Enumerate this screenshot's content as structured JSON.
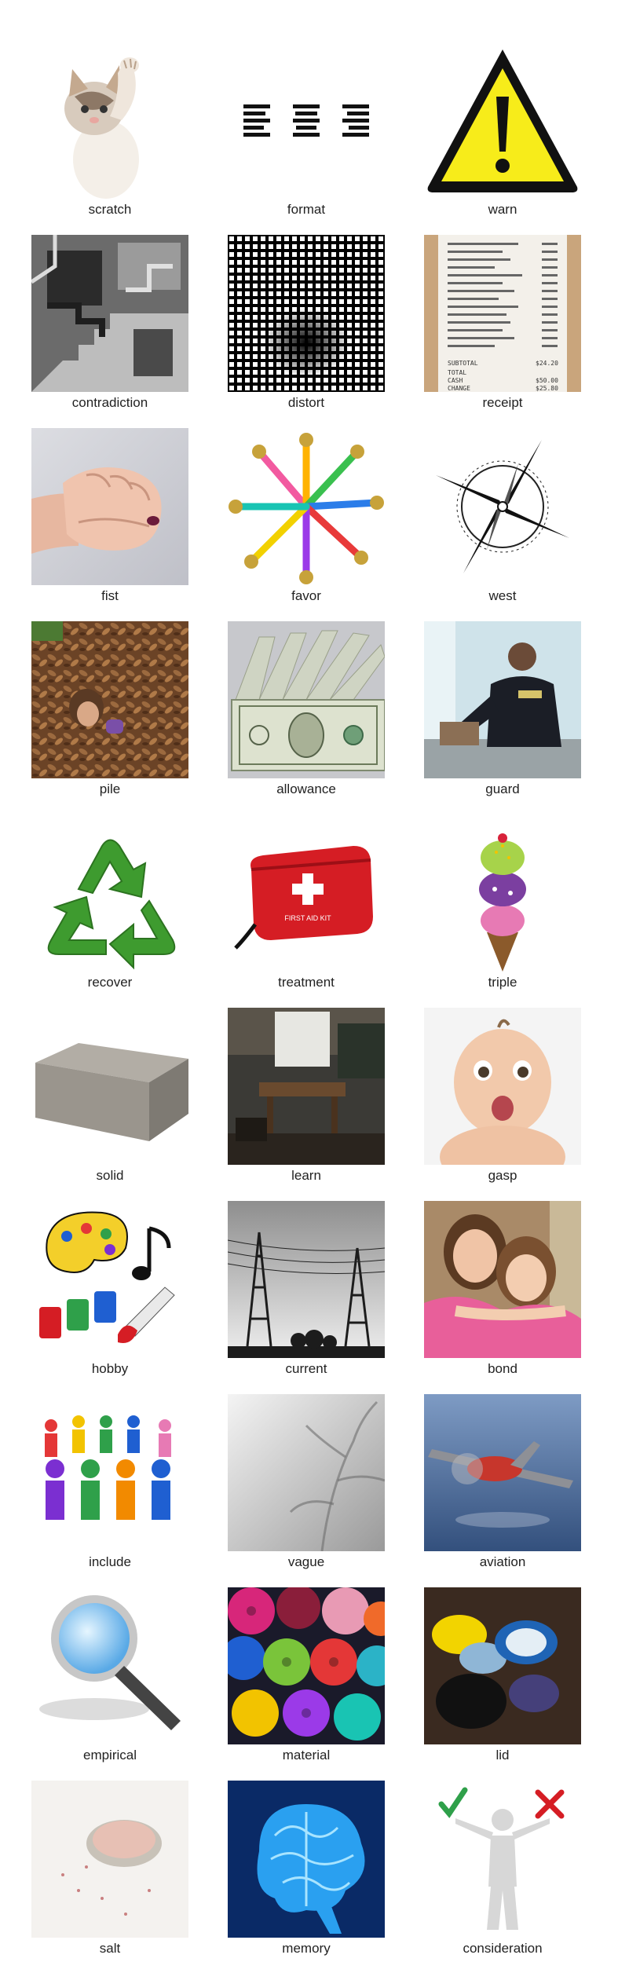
{
  "words": [
    "scratch",
    "format",
    "warn",
    "contradiction",
    "distort",
    "receipt",
    "fist",
    "favor",
    "west",
    "pile",
    "allowance",
    "guard",
    "recover",
    "treatment",
    "triple",
    "solid",
    "learn",
    "gasp",
    "hobby",
    "current",
    "bond",
    "include",
    "vague",
    "aviation",
    "empirical",
    "material",
    "lid",
    "salt",
    "memory",
    "consideration"
  ],
  "receipt_lines": [
    "SUBTOTAL",
    "TOTAL",
    "CASH",
    "CHANGE",
    "$24.20",
    "$50.00",
    "$25.80"
  ],
  "kit_label": "FIRST AID KIT",
  "icons": [
    "kitten-photo",
    "justify-text-icon",
    "warning-sign-icon",
    "escher-stairs-image",
    "distorted-grid-image",
    "receipt-photo",
    "fist-photo",
    "party-horns-image",
    "compass-rose-icon",
    "leaf-pile-photo",
    "dollar-bills-photo",
    "police-officer-photo",
    "recycle-icon",
    "first-aid-kit-image",
    "ice-cream-cone-image",
    "concrete-block-image",
    "classroom-photo",
    "surprised-baby-photo",
    "art-supplies-clipart",
    "power-lines-photo",
    "sisters-photo",
    "paper-people-chain-image",
    "blurry-branches-image",
    "airplane-photo",
    "magnifying-glass-icon",
    "fabric-rolls-photo",
    "bottle-caps-photo",
    "salt-jar-photo",
    "blue-brain-image",
    "figure-with-check-and-x-image"
  ]
}
